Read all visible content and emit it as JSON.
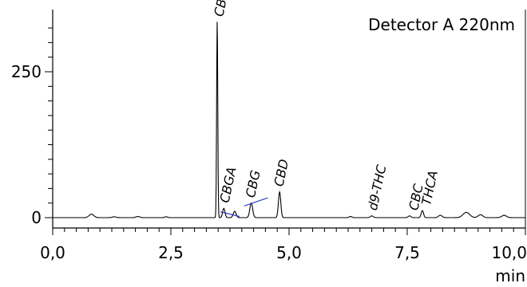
{
  "chart_data": {
    "type": "line",
    "title": "",
    "legend_text": "Detector A 220nm",
    "legend_position": "top-right",
    "xlabel": "min",
    "ylabel": "",
    "xlim": [
      0,
      10.0
    ],
    "ylim": [
      -20,
      350
    ],
    "x_ticks": [
      0,
      2.5,
      5.0,
      7.5,
      10.0
    ],
    "x_tick_labels": [
      "0,0",
      "2,5",
      "5,0",
      "7,5",
      "10,0"
    ],
    "y_ticks": [
      0,
      250
    ],
    "y_tick_labels": [
      "0",
      "250"
    ],
    "grid": false,
    "series_color": "#000000",
    "baseline_color": "#1f2fbf",
    "peaks": [
      {
        "x": 0.82,
        "y": 6,
        "w": 0.05
      },
      {
        "x": 1.3,
        "y": 1.5,
        "w": 0.04
      },
      {
        "x": 1.8,
        "y": 2,
        "w": 0.04
      },
      {
        "x": 2.4,
        "y": 1.5,
        "w": 0.03
      },
      {
        "x": 3.48,
        "y": 338,
        "w": 0.012
      },
      {
        "x": 3.62,
        "y": 16,
        "w": 0.025
      },
      {
        "x": 3.85,
        "y": 11,
        "w": 0.03
      },
      {
        "x": 4.2,
        "y": 25,
        "w": 0.03
      },
      {
        "x": 4.8,
        "y": 44,
        "w": 0.025
      },
      {
        "x": 6.3,
        "y": 2,
        "w": 0.03
      },
      {
        "x": 6.75,
        "y": 3,
        "w": 0.03
      },
      {
        "x": 7.55,
        "y": 3,
        "w": 0.03
      },
      {
        "x": 7.82,
        "y": 12,
        "w": 0.025
      },
      {
        "x": 8.2,
        "y": 4,
        "w": 0.04
      },
      {
        "x": 8.75,
        "y": 9,
        "w": 0.07
      },
      {
        "x": 9.05,
        "y": 5,
        "w": 0.05
      },
      {
        "x": 9.55,
        "y": 4,
        "w": 0.05
      }
    ],
    "annotations": [
      {
        "text": "CBDA",
        "x": 3.48,
        "y": 338
      },
      {
        "text": "CBGA",
        "x": 3.62,
        "y": 16
      },
      {
        "text": "CBG",
        "x": 4.2,
        "y": 25
      },
      {
        "text": "CBD",
        "x": 4.8,
        "y": 44
      },
      {
        "text": "d9-THC",
        "x": 6.75,
        "y": 3
      },
      {
        "text": "CBC",
        "x": 7.55,
        "y": 3
      },
      {
        "text": "THCA",
        "x": 7.82,
        "y": 12
      }
    ],
    "baselines": [
      {
        "x1": 3.55,
        "y1": 10,
        "x2": 3.95,
        "y2": 2
      },
      {
        "x1": 4.05,
        "y1": 20,
        "x2": 4.55,
        "y2": 34
      }
    ]
  }
}
